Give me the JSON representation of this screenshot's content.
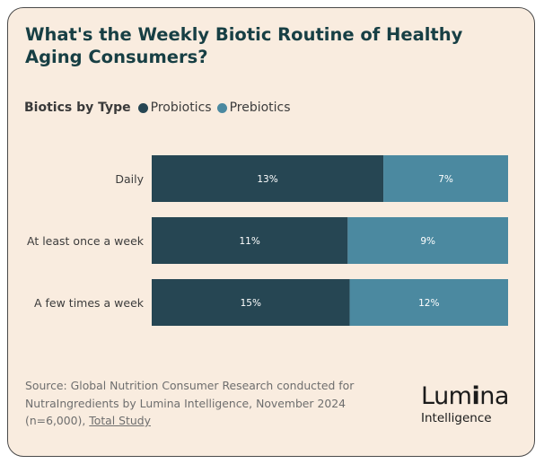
{
  "title": "What's the Weekly Biotic Routine of Healthy Aging Consumers?",
  "legend": {
    "title": "Biotics by Type",
    "items": [
      {
        "label": "Probiotics",
        "color": "#264653"
      },
      {
        "label": "Prebiotics",
        "color": "#4b89a0"
      }
    ]
  },
  "chart_data": {
    "type": "bar",
    "orientation": "horizontal",
    "stacked": true,
    "categories": [
      "Daily",
      "At least once a week",
      "A few times a week"
    ],
    "series": [
      {
        "name": "Probiotics",
        "values": [
          13,
          11,
          15
        ],
        "color": "#264653"
      },
      {
        "name": "Prebiotics",
        "values": [
          7,
          9,
          12
        ],
        "color": "#4b89a0"
      }
    ],
    "value_suffix": "%",
    "normalized": true,
    "grid": false,
    "legend_position": "top-left"
  },
  "source": {
    "text": "Source: Global Nutrition Consumer Research conducted for NutraIngredients by Lumina Intelligence, November 2024 (n=6,000),",
    "link": "Total Study"
  },
  "logo": {
    "main_start": "Lum",
    "main_bold": "i",
    "main_end": "na",
    "sub": "Intelligence"
  }
}
